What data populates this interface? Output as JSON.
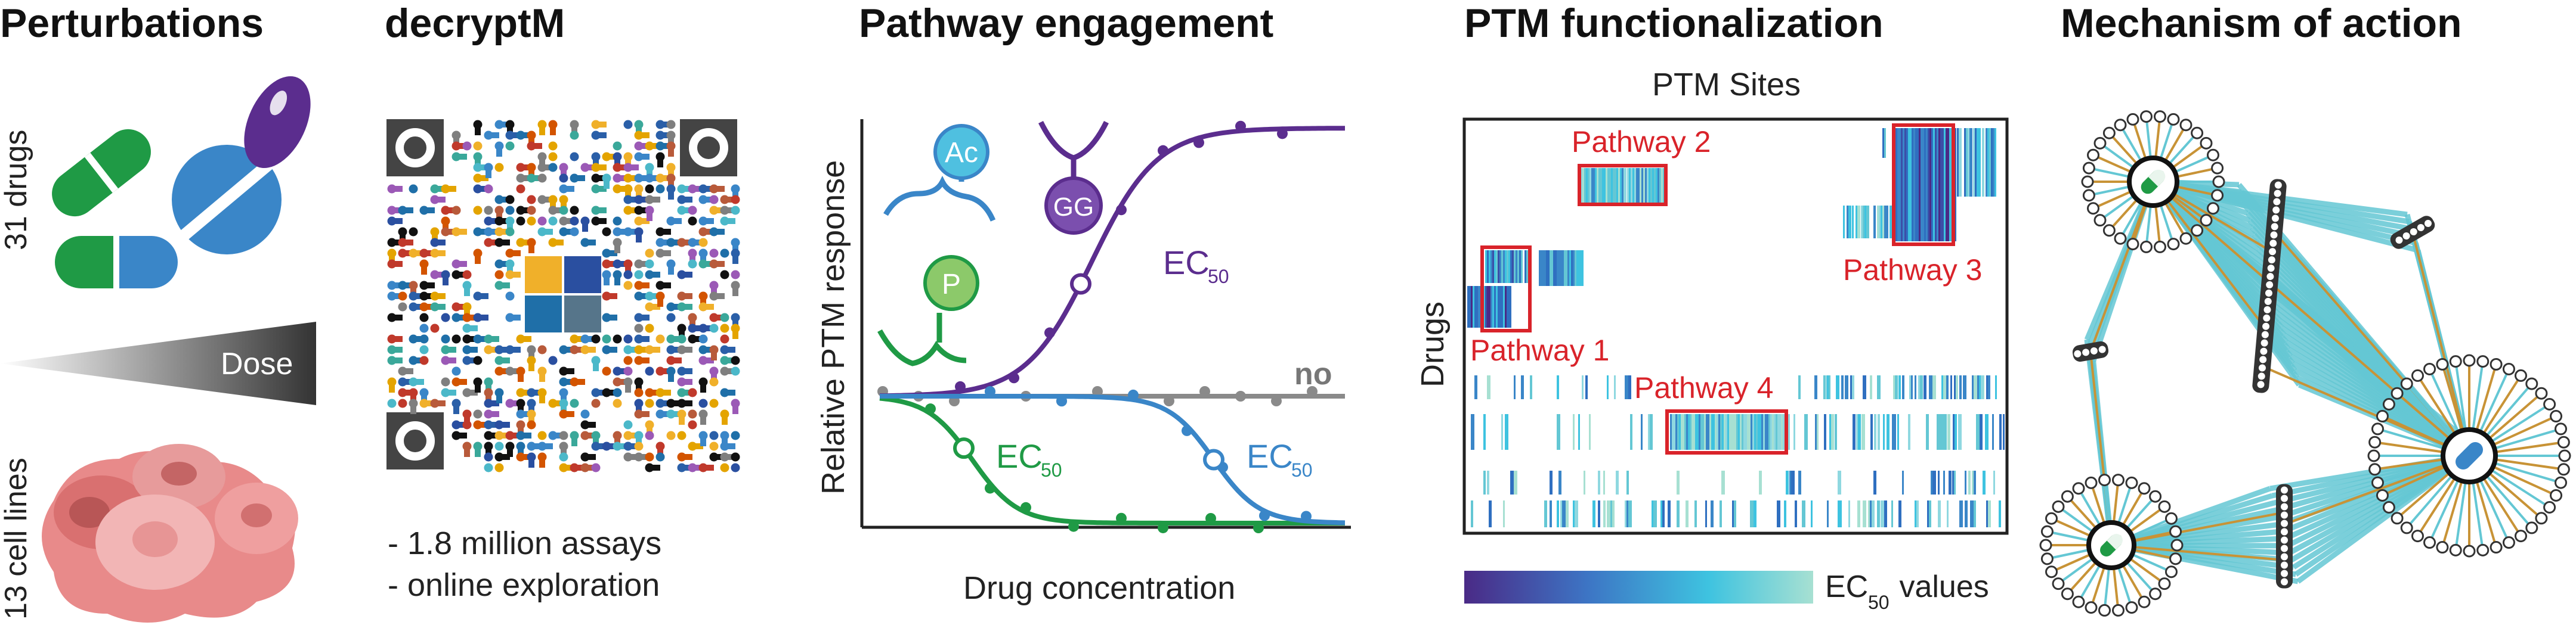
{
  "colors": {
    "green": "#1f9a45",
    "blue": "#3a86c8",
    "purple": "#5b2d8e",
    "gray": "#8a8a8a",
    "red": "#d9232a",
    "teal": "#64c7d4",
    "gold": "#c89336"
  },
  "panels": {
    "perturbations": {
      "title": "Perturbations",
      "drugs_label": "31 drugs",
      "dose_label": "Dose",
      "cells_label": "13 cell lines"
    },
    "decryptm": {
      "title": "decryptM",
      "notes": [
        "- 1.8 million assays",
        "- online exploration"
      ]
    },
    "pathway": {
      "title": "Pathway engagement",
      "ylabel": "Relative PTM response",
      "xlabel": "Drug concentration",
      "mod_ac": "Ac",
      "mod_gg": "GG",
      "mod_p": "P",
      "ec_label": "EC",
      "ec_sub": "50",
      "no_label": "no"
    },
    "ptm": {
      "title": "PTM functionalization",
      "xlabel": "PTM Sites",
      "ylabel": "Drugs",
      "pathways": [
        "Pathway 1",
        "Pathway 2",
        "Pathway 3",
        "Pathway 4"
      ],
      "legend_label": "EC",
      "legend_sub": "50",
      "legend_suffix": " values"
    },
    "moa": {
      "title": "Mechanism of action"
    }
  }
}
